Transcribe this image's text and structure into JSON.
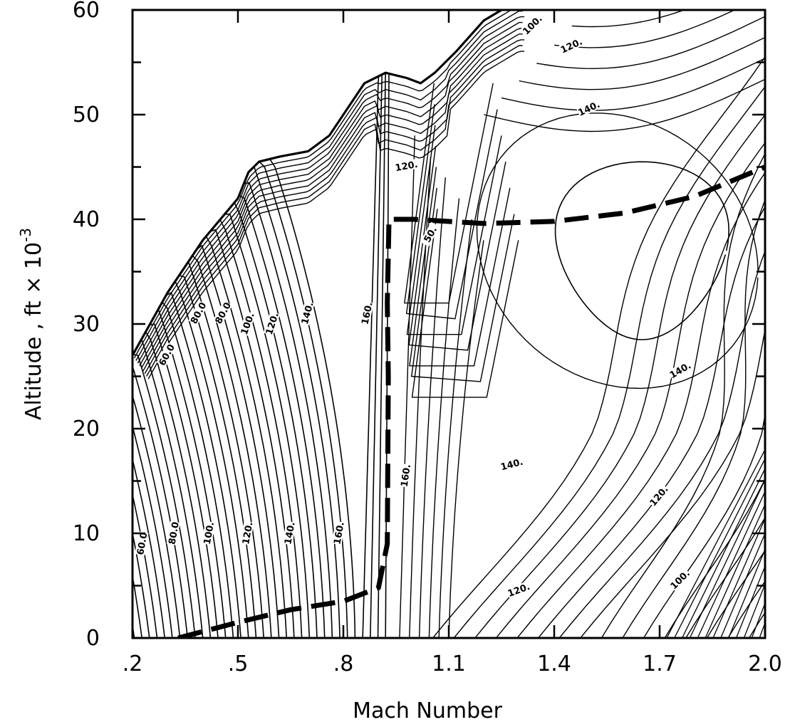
{
  "chart_data": {
    "type": "contour",
    "title": "",
    "xlabel": "Mach Number",
    "ylabel": "Altitude , ft × 10",
    "ylabel_exponent": "-3",
    "xlim": [
      0.2,
      2.0
    ],
    "ylim": [
      0,
      60
    ],
    "x_ticks": [
      0.2,
      0.5,
      0.8,
      1.1,
      1.4,
      1.7,
      2.0
    ],
    "x_tick_labels": [
      ".2",
      ".5",
      ".8",
      "1.1",
      "1.4",
      "1.7",
      "2.0"
    ],
    "y_ticks": [
      0,
      10,
      20,
      30,
      40,
      50,
      60
    ],
    "y_tick_labels": [
      "0",
      "10",
      "20",
      "30",
      "40",
      "50",
      "60"
    ],
    "grid": false,
    "envelope_boundary": [
      [
        0.2,
        27
      ],
      [
        0.3,
        33
      ],
      [
        0.4,
        38
      ],
      [
        0.5,
        42
      ],
      [
        0.53,
        44.5
      ],
      [
        0.56,
        45.5
      ],
      [
        0.62,
        46
      ],
      [
        0.7,
        46.5
      ],
      [
        0.76,
        48
      ],
      [
        0.8,
        50
      ],
      [
        0.86,
        53
      ],
      [
        0.92,
        54
      ],
      [
        0.98,
        53.5
      ],
      [
        1.02,
        53
      ],
      [
        1.06,
        54
      ],
      [
        1.12,
        56
      ],
      [
        1.2,
        59
      ],
      [
        1.3,
        61
      ]
    ],
    "optimum_path": [
      [
        0.33,
        0
      ],
      [
        0.5,
        1.5
      ],
      [
        0.65,
        2.7
      ],
      [
        0.8,
        3.5
      ],
      [
        0.9,
        4.8
      ],
      [
        0.925,
        9
      ],
      [
        0.928,
        25
      ],
      [
        0.925,
        32
      ],
      [
        0.93,
        40
      ],
      [
        1.0,
        40
      ],
      [
        1.2,
        39.6
      ],
      [
        1.4,
        39.8
      ],
      [
        1.6,
        40.6
      ],
      [
        1.8,
        42.2
      ],
      [
        2.0,
        45
      ]
    ],
    "contour_labels": [
      {
        "text": "60.0",
        "x": 0.23,
        "y": 9,
        "angle": -80
      },
      {
        "text": "80.0",
        "x": 0.32,
        "y": 10,
        "angle": -80
      },
      {
        "text": "100.",
        "x": 0.42,
        "y": 10,
        "angle": -80
      },
      {
        "text": "120.",
        "x": 0.53,
        "y": 10,
        "angle": -80
      },
      {
        "text": "140.",
        "x": 0.65,
        "y": 10,
        "angle": -80
      },
      {
        "text": "160.",
        "x": 0.79,
        "y": 10,
        "angle": -80
      },
      {
        "text": "60.0",
        "x": 0.3,
        "y": 27,
        "angle": -62
      },
      {
        "text": "80.0",
        "x": 0.39,
        "y": 31,
        "angle": -62
      },
      {
        "text": "80.0",
        "x": 0.46,
        "y": 31,
        "angle": -62
      },
      {
        "text": "100.",
        "x": 0.53,
        "y": 30,
        "angle": -70
      },
      {
        "text": "120.",
        "x": 0.6,
        "y": 30,
        "angle": -72
      },
      {
        "text": "140.",
        "x": 0.7,
        "y": 31,
        "angle": -75
      },
      {
        "text": "160.",
        "x": 0.87,
        "y": 31,
        "angle": -78
      },
      {
        "text": "160.",
        "x": 0.98,
        "y": 15.5,
        "angle": -82
      },
      {
        "text": "120.",
        "x": 0.98,
        "y": 45,
        "angle": -10
      },
      {
        "text": "140.",
        "x": 1.28,
        "y": 16.5,
        "angle": -15
      },
      {
        "text": "140.",
        "x": 1.76,
        "y": 25.5,
        "angle": -30
      },
      {
        "text": "140.",
        "x": 1.5,
        "y": 50.5,
        "angle": -25
      },
      {
        "text": "120.",
        "x": 1.45,
        "y": 56.5,
        "angle": -25
      },
      {
        "text": "100.",
        "x": 1.34,
        "y": 58.5,
        "angle": -45
      },
      {
        "text": "120.",
        "x": 1.7,
        "y": 13.5,
        "angle": -50
      },
      {
        "text": "120.",
        "x": 1.3,
        "y": 4.5,
        "angle": -20
      },
      {
        "text": "100.",
        "x": 1.76,
        "y": 5.5,
        "angle": -45
      },
      {
        "text": "50.",
        "x": 1.05,
        "y": 38.5,
        "angle": -60
      }
    ]
  }
}
